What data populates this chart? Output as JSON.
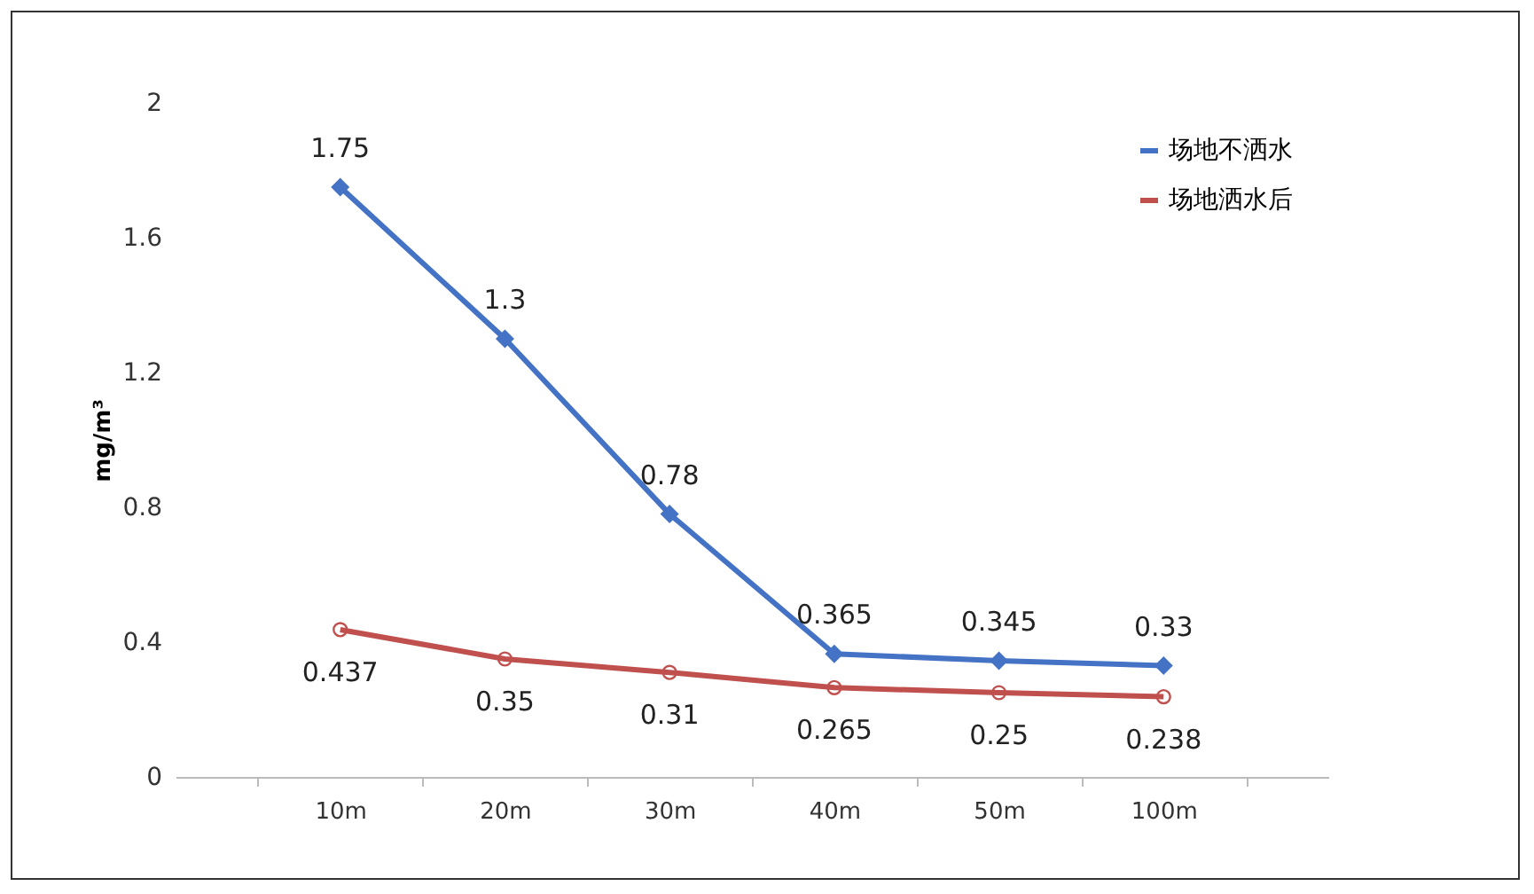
{
  "chart_data": {
    "type": "line",
    "ylabel": "mg/m³",
    "categories": [
      "10m",
      "20m",
      "30m",
      "40m",
      "50m",
      "100m"
    ],
    "series": [
      {
        "name": "场地不洒水",
        "color": "#4472c4",
        "marker": "diamond",
        "values": [
          1.75,
          1.3,
          0.78,
          0.365,
          0.345,
          0.33
        ]
      },
      {
        "name": "场地洒水后",
        "color": "#c0504d",
        "marker": "circle",
        "values": [
          0.437,
          0.35,
          0.31,
          0.265,
          0.25,
          0.238
        ]
      }
    ],
    "ylim": [
      0,
      2
    ],
    "yticks": [
      0,
      0.4,
      0.8,
      1.2,
      1.6,
      2
    ],
    "grid": false,
    "legend": "top right",
    "data_labels": true
  }
}
